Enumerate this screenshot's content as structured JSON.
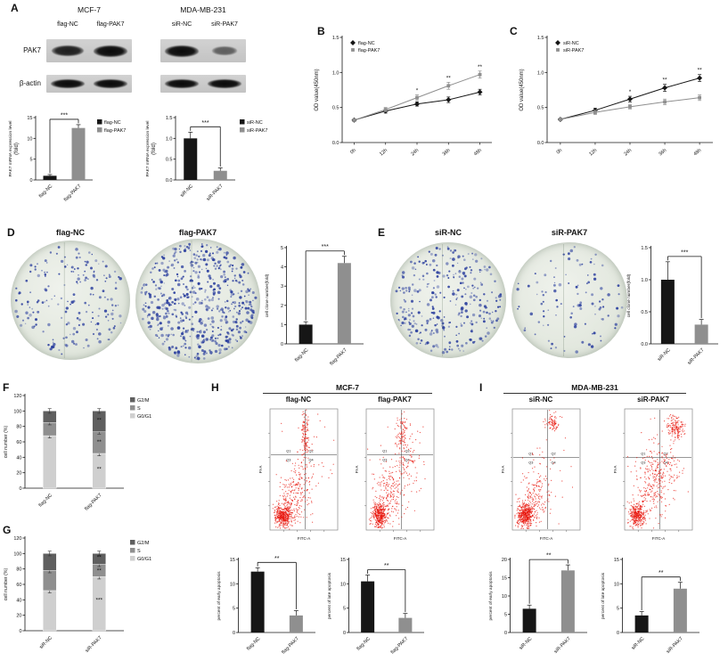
{
  "colors": {
    "black": "#161616",
    "gray": "#8f8f8f",
    "stack_dark": "#5f5f5f",
    "stack_mid": "#8f8f8f",
    "stack_light": "#cfcfcf",
    "flow_dot": "#e8150c",
    "colony_dot": "#2b3f9e",
    "axis": "#161616"
  },
  "panels": {
    "A": {
      "label": "A",
      "groups": [
        {
          "title": "MCF-7",
          "lanes": [
            "flag-NC",
            "flag-PAK7"
          ]
        },
        {
          "title": "MDA-MB-231",
          "lanes": [
            "siR-NC",
            "siR-PAK7"
          ]
        }
      ],
      "rows": [
        {
          "name": "PAK7",
          "band_h": 13,
          "bands": [
            [
              0.85,
              1.0
            ],
            [
              1.0,
              0.42
            ]
          ]
        },
        {
          "name": "β-actin",
          "band_h": 10,
          "bands": [
            [
              1,
              1
            ],
            [
              1,
              1
            ]
          ]
        }
      ]
    },
    "B": {
      "label": "B"
    },
    "C": {
      "label": "C"
    },
    "D": {
      "label": "D",
      "dishes": [
        {
          "label": "flag-NC",
          "dots": 190
        },
        {
          "label": "flag-PAK7",
          "dots": 540
        }
      ]
    },
    "E": {
      "label": "E",
      "dishes": [
        {
          "label": "siR-NC",
          "dots": 310
        },
        {
          "label": "siR-PAK7",
          "dots": 105
        }
      ]
    },
    "F": {
      "label": "F"
    },
    "G": {
      "label": "G"
    },
    "H": {
      "label": "H",
      "title": "MCF-7",
      "plots": [
        {
          "label": "flag-NC",
          "x_axis": "FITC-A",
          "y_axis": "PI-A",
          "quadrants": [
            "Q1",
            "Q2",
            "Q3",
            "Q4"
          ],
          "vx": 0.52,
          "hy": 0.62,
          "clusters": [
            [
              0.2,
              0.12,
              0.06,
              0.05,
              420
            ],
            [
              0.33,
              0.27,
              0.1,
              0.1,
              150
            ],
            [
              0.5,
              0.47,
              0.07,
              0.09,
              60
            ],
            [
              0.52,
              0.8,
              0.03,
              0.1,
              110
            ],
            [
              0.5,
              0.5,
              0.22,
              0.22,
              60
            ]
          ]
        },
        {
          "label": "flag-PAK7",
          "x_axis": "FITC-A",
          "y_axis": "PI-A",
          "quadrants": [
            "Q1",
            "Q2",
            "Q3",
            "Q4"
          ],
          "vx": 0.52,
          "hy": 0.62,
          "clusters": [
            [
              0.2,
              0.12,
              0.06,
              0.05,
              380
            ],
            [
              0.36,
              0.3,
              0.12,
              0.12,
              170
            ],
            [
              0.52,
              0.82,
              0.04,
              0.09,
              90
            ],
            [
              0.62,
              0.57,
              0.09,
              0.13,
              60
            ],
            [
              0.5,
              0.5,
              0.22,
              0.22,
              70
            ]
          ]
        }
      ]
    },
    "I": {
      "label": "I",
      "title": "MDA-MB-231",
      "plots": [
        {
          "label": "siR-NC",
          "x_axis": "FITC-A",
          "y_axis": "PI-A",
          "quadrants": [
            "Q1",
            "Q2",
            "Q3",
            "Q4"
          ],
          "vx": 0.52,
          "hy": 0.6,
          "clusters": [
            [
              0.19,
              0.12,
              0.06,
              0.05,
              420
            ],
            [
              0.33,
              0.27,
              0.1,
              0.1,
              150
            ],
            [
              0.6,
              0.88,
              0.05,
              0.035,
              80
            ],
            [
              0.48,
              0.43,
              0.18,
              0.18,
              60
            ]
          ]
        },
        {
          "label": "siR-PAK7",
          "x_axis": "FITC-A",
          "y_axis": "PI-A",
          "quadrants": [
            "Q1",
            "Q2",
            "Q3",
            "Q4"
          ],
          "vx": 0.52,
          "hy": 0.6,
          "clusters": [
            [
              0.19,
              0.12,
              0.06,
              0.05,
              340
            ],
            [
              0.42,
              0.38,
              0.13,
              0.13,
              200
            ],
            [
              0.75,
              0.85,
              0.055,
              0.045,
              150
            ],
            [
              0.58,
              0.55,
              0.1,
              0.1,
              80
            ],
            [
              0.5,
              0.5,
              0.22,
              0.22,
              60
            ]
          ]
        }
      ]
    }
  },
  "chart_data": {
    "a_left": {
      "type": "bar",
      "y_label": "PAK7 mRNA expression level\n(fold)",
      "y_ticks": [
        0,
        5,
        10,
        15
      ],
      "y_max": 15,
      "dec": 0,
      "bars": [
        {
          "label": "flag-NC",
          "value": 1.0,
          "err": 0.3,
          "color": "black"
        },
        {
          "label": "flag-PAK7",
          "value": 12.5,
          "err": 0.8,
          "color": "gray"
        }
      ],
      "sig": "***",
      "legend": [
        {
          "label": "flag-NC",
          "color": "black"
        },
        {
          "label": "flag-PAK7",
          "color": "gray"
        }
      ]
    },
    "a_right": {
      "type": "bar",
      "y_label": "PAK7 mRNA expression level\n(fold)",
      "y_ticks": [
        0,
        0.5,
        1,
        1.5
      ],
      "y_max": 1.5,
      "dec": 1,
      "bars": [
        {
          "label": "siR-NC",
          "value": 1.0,
          "err": 0.15,
          "color": "black"
        },
        {
          "label": "siR-PAK7",
          "value": 0.22,
          "err": 0.07,
          "color": "gray"
        }
      ],
      "sig": "***",
      "legend": [
        {
          "label": "siR-NC",
          "color": "black"
        },
        {
          "label": "siR-PAK7",
          "color": "gray"
        }
      ]
    },
    "b": {
      "type": "line",
      "y_label": "OD value(450nm)",
      "y_ticks": [
        0,
        0.5,
        1,
        1.5
      ],
      "y_max": 1.5,
      "dec": 1,
      "x": [
        "0h",
        "12h",
        "24h",
        "36h",
        "48h"
      ],
      "series": [
        {
          "name": "flag-NC",
          "marker": "diamond",
          "color": "black",
          "values": [
            0.32,
            0.45,
            0.55,
            0.61,
            0.72
          ],
          "err": [
            0.02,
            0.03,
            0.03,
            0.04,
            0.04
          ]
        },
        {
          "name": "flag-PAK7",
          "marker": "square",
          "color": "gray",
          "values": [
            0.32,
            0.47,
            0.64,
            0.81,
            0.97
          ],
          "err": [
            0.02,
            0.03,
            0.04,
            0.05,
            0.05
          ]
        }
      ],
      "sig": [
        {
          "i": 2,
          "text": "*"
        },
        {
          "i": 3,
          "text": "**"
        },
        {
          "i": 4,
          "text": "**"
        }
      ]
    },
    "c": {
      "type": "line",
      "y_label": "OD value(450nm)",
      "y_ticks": [
        0,
        0.5,
        1,
        1.5
      ],
      "y_max": 1.5,
      "dec": 1,
      "x": [
        "0h",
        "12h",
        "24h",
        "36h",
        "48h"
      ],
      "series": [
        {
          "name": "siR-NC",
          "marker": "diamond",
          "color": "black",
          "values": [
            0.33,
            0.46,
            0.62,
            0.78,
            0.92
          ],
          "err": [
            0.02,
            0.03,
            0.04,
            0.05,
            0.05
          ]
        },
        {
          "name": "siR-PAK7",
          "marker": "square",
          "color": "gray",
          "values": [
            0.33,
            0.43,
            0.51,
            0.58,
            0.64
          ],
          "err": [
            0.02,
            0.03,
            0.03,
            0.04,
            0.04
          ]
        }
      ],
      "sig": [
        {
          "i": 2,
          "text": "*"
        },
        {
          "i": 3,
          "text": "**"
        },
        {
          "i": 4,
          "text": "**"
        }
      ]
    },
    "d": {
      "type": "bar",
      "y_label": "cell clone number(fold)",
      "y_ticks": [
        0,
        1,
        2,
        3,
        4,
        5
      ],
      "y_max": 5,
      "dec": 0,
      "bars": [
        {
          "label": "flag-NC",
          "value": 1.0,
          "err": 0.15,
          "color": "black"
        },
        {
          "label": "flag-PAK7",
          "value": 4.2,
          "err": 0.35,
          "color": "gray"
        }
      ],
      "sig": "***"
    },
    "e": {
      "type": "bar",
      "y_label": "cell clone number(fold)",
      "y_ticks": [
        0,
        0.5,
        1,
        1.5
      ],
      "y_max": 1.5,
      "dec": 1,
      "bars": [
        {
          "label": "siR-NC",
          "value": 1.0,
          "err": 0.28,
          "color": "black"
        },
        {
          "label": "siR-PAK7",
          "value": 0.3,
          "err": 0.08,
          "color": "gray"
        }
      ],
      "sig": "***"
    },
    "f": {
      "type": "stack",
      "y_label": "cell number (%)",
      "y_ticks": [
        0,
        20,
        40,
        60,
        80,
        100,
        120
      ],
      "y_max": 120,
      "dec": 0,
      "segments": [
        {
          "name": "G2/M",
          "color": "stack_dark"
        },
        {
          "name": "S",
          "color": "stack_mid"
        },
        {
          "name": "G0/G1",
          "color": "stack_light"
        }
      ],
      "stack_order": [
        "G0/G1",
        "S",
        "G2/M"
      ],
      "seg_err": 3,
      "categories": [
        {
          "label": "flag-NC",
          "values": {
            "G0/G1": 68,
            "S": 17,
            "G2/M": 15
          }
        },
        {
          "label": "flag-PAK7",
          "values": {
            "G0/G1": 45,
            "S": 28,
            "G2/M": 27
          }
        }
      ],
      "sig": [
        {
          "bar": 1,
          "at": 88,
          "text": "**"
        },
        {
          "bar": 1,
          "at": 60,
          "text": "**"
        },
        {
          "bar": 1,
          "at": 25,
          "text": "**"
        }
      ]
    },
    "g": {
      "type": "stack",
      "y_label": "cell number (%)",
      "y_ticks": [
        0,
        20,
        40,
        60,
        80,
        100,
        120
      ],
      "y_max": 120,
      "dec": 0,
      "segments": [
        {
          "name": "G2/M",
          "color": "stack_dark"
        },
        {
          "name": "S",
          "color": "stack_mid"
        },
        {
          "name": "G0/G1",
          "color": "stack_light"
        }
      ],
      "stack_order": [
        "G0/G1",
        "S",
        "G2/M"
      ],
      "seg_err": 3,
      "categories": [
        {
          "label": "siR-NC",
          "values": {
            "G0/G1": 52,
            "S": 26,
            "G2/M": 22
          }
        },
        {
          "label": "siR-PAK7",
          "values": {
            "G0/G1": 70,
            "S": 16,
            "G2/M": 14
          }
        }
      ],
      "sig": [
        {
          "bar": 1,
          "at": 95,
          "text": "**"
        },
        {
          "bar": 1,
          "at": 78,
          "text": "**"
        },
        {
          "bar": 1,
          "at": 40,
          "text": "***"
        }
      ]
    },
    "h_early": {
      "type": "bar",
      "y_label": "percent of early apoptosis",
      "y_ticks": [
        0,
        5,
        10,
        15
      ],
      "y_max": 15,
      "dec": 0,
      "bars": [
        {
          "label": "flag-NC",
          "value": 12.5,
          "err": 0.8,
          "color": "black"
        },
        {
          "label": "flag-PAK7",
          "value": 3.5,
          "err": 1.0,
          "color": "gray"
        }
      ],
      "sig": "**"
    },
    "h_late": {
      "type": "bar",
      "y_label": "percent of late apoptosis",
      "y_ticks": [
        0,
        5,
        10,
        15
      ],
      "y_max": 15,
      "dec": 0,
      "bars": [
        {
          "label": "flag-NC",
          "value": 10.5,
          "err": 1.3,
          "color": "black"
        },
        {
          "label": "flag-PAK7",
          "value": 3.0,
          "err": 0.9,
          "color": "gray"
        }
      ],
      "sig": "**"
    },
    "i_early": {
      "type": "bar",
      "y_label": "percent of early apoptosis",
      "y_ticks": [
        0,
        5,
        10,
        15,
        20
      ],
      "y_max": 20,
      "dec": 0,
      "bars": [
        {
          "label": "siR-NC",
          "value": 6.5,
          "err": 1.0,
          "color": "black"
        },
        {
          "label": "siR-PAK7",
          "value": 17.0,
          "err": 1.5,
          "color": "gray"
        }
      ],
      "sig": "**"
    },
    "i_late": {
      "type": "bar",
      "y_label": "percent of late apoptosis",
      "y_ticks": [
        0,
        5,
        10,
        15
      ],
      "y_max": 15,
      "dec": 0,
      "bars": [
        {
          "label": "siR-NC",
          "value": 3.5,
          "err": 0.8,
          "color": "black"
        },
        {
          "label": "siR-PAK7",
          "value": 9.0,
          "err": 1.3,
          "color": "gray"
        }
      ],
      "sig": "**"
    }
  }
}
